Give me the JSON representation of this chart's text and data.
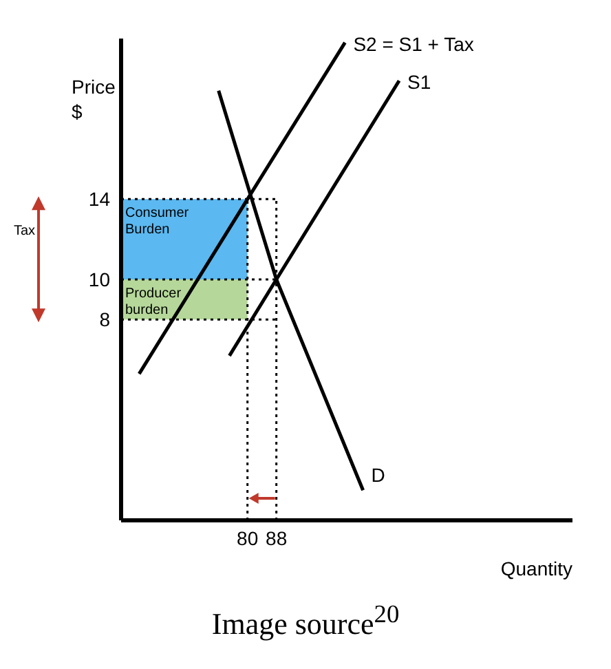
{
  "chart_data": {
    "type": "line",
    "xlabel": "Quantity",
    "ylabel": "Price $",
    "xlim": [
      45,
      170
    ],
    "ylim": [
      -2,
      22
    ],
    "xticks": [
      80,
      88
    ],
    "yticks": [
      8,
      10,
      14
    ],
    "marker": "none",
    "line_style": "solid",
    "series": [
      {
        "name": "S2 = S1 + Tax",
        "color": "#000000",
        "x": [
          50,
          80,
          107
        ],
        "values": [
          5.3,
          14,
          21.8
        ]
      },
      {
        "name": "S1",
        "color": "#000000",
        "x": [
          75,
          88,
          122
        ],
        "values": [
          6.2,
          10,
          19.9
        ]
      },
      {
        "name": "D",
        "color": "#000000",
        "x": [
          72,
          88,
          112
        ],
        "values": [
          19.4,
          10,
          -0.5
        ]
      }
    ],
    "ref_lines": [
      {
        "axis": "y",
        "value": 14,
        "line_style": "dotted",
        "color": "#000000"
      },
      {
        "axis": "y",
        "value": 10,
        "line_style": "dotted",
        "color": "#000000"
      },
      {
        "axis": "y",
        "value": 8,
        "line_style": "dotted",
        "color": "#000000"
      },
      {
        "axis": "x",
        "value": 80,
        "line_style": "dotted",
        "color": "#000000"
      },
      {
        "axis": "x",
        "value": 88,
        "line_style": "dotted",
        "color": "#000000"
      }
    ],
    "bands": [
      {
        "axis": "y",
        "from": 10,
        "to": 14,
        "label": "Consumer Burden",
        "color": "#5bb8f0"
      },
      {
        "axis": "y",
        "from": 8,
        "to": 10,
        "label": "Producer burden",
        "color": "#b5d89a"
      }
    ],
    "annotations": [
      "Tax",
      "Image source$^{20}$"
    ]
  }
}
